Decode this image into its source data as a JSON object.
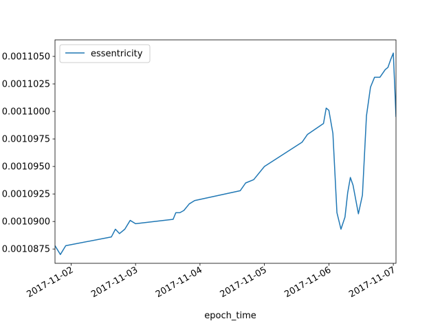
{
  "chart_data": {
    "type": "line",
    "title": "",
    "xlabel": "epoch_time",
    "ylabel": "",
    "x_type": "date",
    "xlim": [
      "2017-11-01T18:00",
      "2017-11-07T01:00"
    ],
    "ylim": [
      0.0010862,
      0.0011065
    ],
    "xticks": [
      "2017-11-02",
      "2017-11-03",
      "2017-11-04",
      "2017-11-05",
      "2017-11-06",
      "2017-11-07"
    ],
    "xtick_labels": [
      "2017-11-02",
      "2017-11-03",
      "2017-11-04",
      "2017-11-05",
      "2017-11-06",
      "2017-11-07"
    ],
    "yticks": [
      0.0010875,
      0.00109,
      0.0010925,
      0.001095,
      0.0010975,
      0.0011,
      0.0011025,
      0.001105
    ],
    "ytick_labels": [
      "0.0010875",
      "0.0010900",
      "0.0010925",
      "0.0010950",
      "0.0010975",
      "0.0011000",
      "0.0011025",
      "0.0011050"
    ],
    "grid": false,
    "legend_position": "upper-left",
    "line_color": "#1f77b4",
    "series": [
      {
        "name": "essentricity",
        "x": [
          "2017-11-01T18:00",
          "2017-11-01T20:00",
          "2017-11-01T22:00",
          "2017-11-02T15:00",
          "2017-11-02T16:30",
          "2017-11-02T18:00",
          "2017-11-02T20:00",
          "2017-11-02T22:00",
          "2017-11-03T00:00",
          "2017-11-03T14:00",
          "2017-11-03T15:00",
          "2017-11-03T16:30",
          "2017-11-03T18:00",
          "2017-11-03T20:00",
          "2017-11-03T22:00",
          "2017-11-04T15:00",
          "2017-11-04T17:00",
          "2017-11-04T20:00",
          "2017-11-05T00:00",
          "2017-11-05T14:00",
          "2017-11-05T16:00",
          "2017-11-05T19:00",
          "2017-11-05T22:00",
          "2017-11-05T23:00",
          "2017-11-06T00:00",
          "2017-11-06T01:30",
          "2017-11-06T03:00",
          "2017-11-06T04:30",
          "2017-11-06T06:00",
          "2017-11-06T07:00",
          "2017-11-06T08:00",
          "2017-11-06T09:00",
          "2017-11-06T11:00",
          "2017-11-06T12:30",
          "2017-11-06T14:00",
          "2017-11-06T15:30",
          "2017-11-06T17:00",
          "2017-11-06T19:00",
          "2017-11-06T21:00",
          "2017-11-06T22:00",
          "2017-11-06T23:00",
          "2017-11-07T00:00",
          "2017-11-07T01:00"
        ],
        "y": [
          0.0010878,
          0.001087,
          0.0010878,
          0.0010886,
          0.0010893,
          0.0010889,
          0.0010893,
          0.0010901,
          0.0010898,
          0.0010902,
          0.0010908,
          0.0010908,
          0.001091,
          0.0010916,
          0.0010919,
          0.0010928,
          0.0010935,
          0.0010938,
          0.001095,
          0.0010972,
          0.0010979,
          0.0010984,
          0.0010989,
          0.0011003,
          0.0011001,
          0.001098,
          0.0010908,
          0.0010893,
          0.0010904,
          0.0010926,
          0.001094,
          0.0010933,
          0.0010907,
          0.0010924,
          0.0010996,
          0.0011022,
          0.0011031,
          0.0011031,
          0.0011038,
          0.001104,
          0.0011047,
          0.0011053,
          0.0010995
        ]
      }
    ]
  }
}
